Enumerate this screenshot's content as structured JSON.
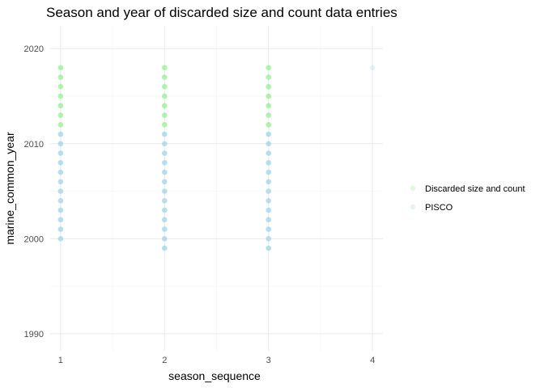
{
  "chart_data": {
    "type": "scatter",
    "title": "Season and year of discarded size and count data entries",
    "xlabel": "season_sequence",
    "ylabel": "marine_common_year",
    "xlim": [
      0.9,
      4.1
    ],
    "ylim": [
      1988.2,
      2022.4
    ],
    "x_ticks": [
      1,
      2,
      3,
      4
    ],
    "y_ticks": [
      1990,
      2000,
      2010,
      2020
    ],
    "x_minor": [
      1.5,
      2.5,
      3.5
    ],
    "y_minor": [
      1995,
      2005,
      2015
    ],
    "grid": true,
    "legend_position": "right",
    "series": [
      {
        "name": "Discarded size and count",
        "color": "#90EE90",
        "points": [
          {
            "x": 1,
            "y": 2012
          },
          {
            "x": 1,
            "y": 2013
          },
          {
            "x": 1,
            "y": 2014
          },
          {
            "x": 1,
            "y": 2015
          },
          {
            "x": 1,
            "y": 2016
          },
          {
            "x": 1,
            "y": 2017
          },
          {
            "x": 1,
            "y": 2018
          },
          {
            "x": 2,
            "y": 2012
          },
          {
            "x": 2,
            "y": 2013
          },
          {
            "x": 2,
            "y": 2014
          },
          {
            "x": 2,
            "y": 2015
          },
          {
            "x": 2,
            "y": 2016
          },
          {
            "x": 2,
            "y": 2017
          },
          {
            "x": 2,
            "y": 2018
          },
          {
            "x": 3,
            "y": 2012
          },
          {
            "x": 3,
            "y": 2013
          },
          {
            "x": 3,
            "y": 2014
          },
          {
            "x": 3,
            "y": 2015
          },
          {
            "x": 3,
            "y": 2016
          },
          {
            "x": 3,
            "y": 2017
          },
          {
            "x": 3,
            "y": 2018
          }
        ]
      },
      {
        "name": "PISCO",
        "color": "#9DD3E6",
        "points": [
          {
            "x": 1,
            "y": 2000
          },
          {
            "x": 1,
            "y": 2001
          },
          {
            "x": 1,
            "y": 2002
          },
          {
            "x": 1,
            "y": 2003
          },
          {
            "x": 1,
            "y": 2004
          },
          {
            "x": 1,
            "y": 2005
          },
          {
            "x": 1,
            "y": 2006
          },
          {
            "x": 1,
            "y": 2007
          },
          {
            "x": 1,
            "y": 2008
          },
          {
            "x": 1,
            "y": 2009
          },
          {
            "x": 1,
            "y": 2010
          },
          {
            "x": 1,
            "y": 2011
          },
          {
            "x": 2,
            "y": 1999
          },
          {
            "x": 2,
            "y": 2000
          },
          {
            "x": 2,
            "y": 2001
          },
          {
            "x": 2,
            "y": 2002
          },
          {
            "x": 2,
            "y": 2003
          },
          {
            "x": 2,
            "y": 2004
          },
          {
            "x": 2,
            "y": 2005
          },
          {
            "x": 2,
            "y": 2006
          },
          {
            "x": 2,
            "y": 2007
          },
          {
            "x": 2,
            "y": 2008
          },
          {
            "x": 2,
            "y": 2009
          },
          {
            "x": 2,
            "y": 2010
          },
          {
            "x": 2,
            "y": 2011
          },
          {
            "x": 3,
            "y": 1999
          },
          {
            "x": 3,
            "y": 2000
          },
          {
            "x": 3,
            "y": 2001
          },
          {
            "x": 3,
            "y": 2002
          },
          {
            "x": 3,
            "y": 2003
          },
          {
            "x": 3,
            "y": 2004
          },
          {
            "x": 3,
            "y": 2005
          },
          {
            "x": 3,
            "y": 2006
          },
          {
            "x": 3,
            "y": 2007
          },
          {
            "x": 3,
            "y": 2008
          },
          {
            "x": 3,
            "y": 2009
          },
          {
            "x": 3,
            "y": 2010
          },
          {
            "x": 3,
            "y": 2011
          },
          {
            "x": 4,
            "y": 2018
          }
        ]
      }
    ]
  }
}
